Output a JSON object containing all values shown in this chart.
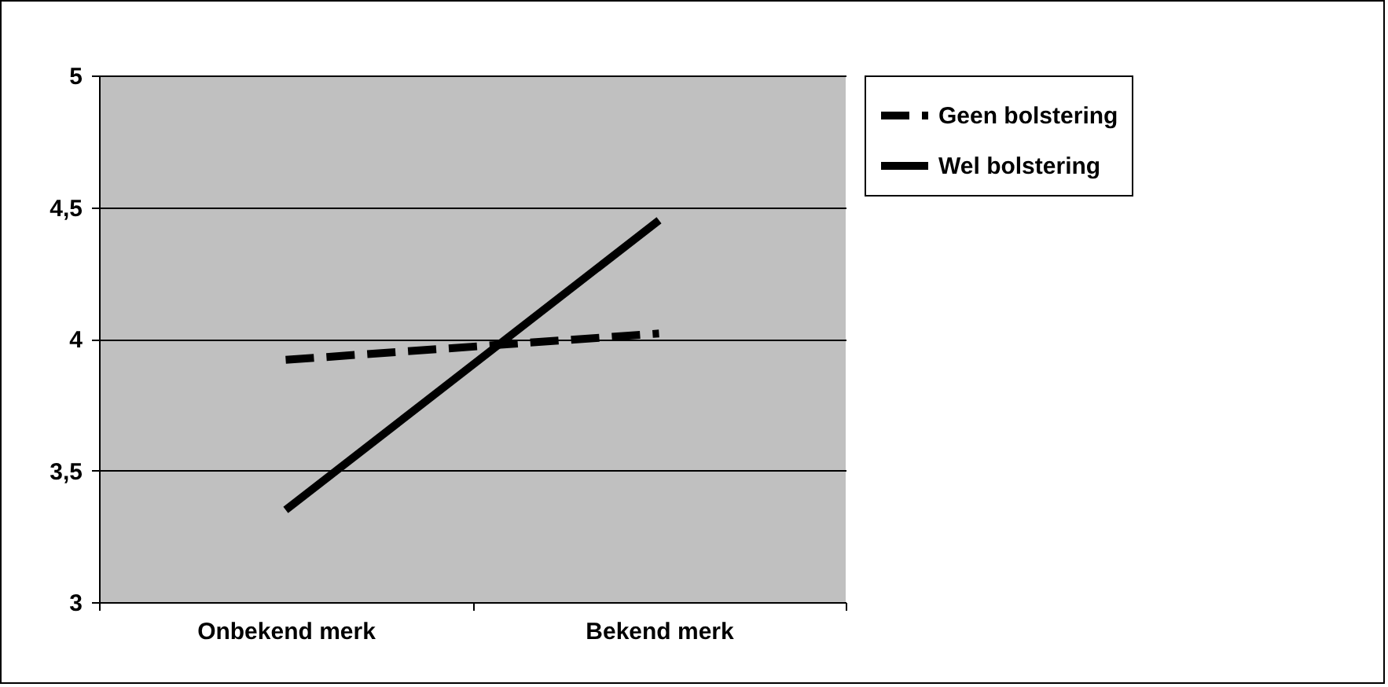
{
  "chart_data": {
    "type": "line",
    "categories": [
      "Onbekend merk",
      "Bekend merk"
    ],
    "series": [
      {
        "name": "Geen bolstering",
        "color": "#000000",
        "line_style": "dashed",
        "values": [
          3.92,
          4.02
        ]
      },
      {
        "name": "Wel bolstering",
        "color": "#000000",
        "line_style": "solid",
        "values": [
          3.35,
          4.45
        ]
      }
    ],
    "ylim": [
      3,
      5
    ],
    "yticks": [
      3,
      {
        "value": 3.5,
        "label": "3,5"
      },
      4,
      {
        "value": 4.5,
        "label": "4,5"
      },
      5
    ],
    "grid": "y",
    "legend": "top right",
    "marker": "none"
  }
}
